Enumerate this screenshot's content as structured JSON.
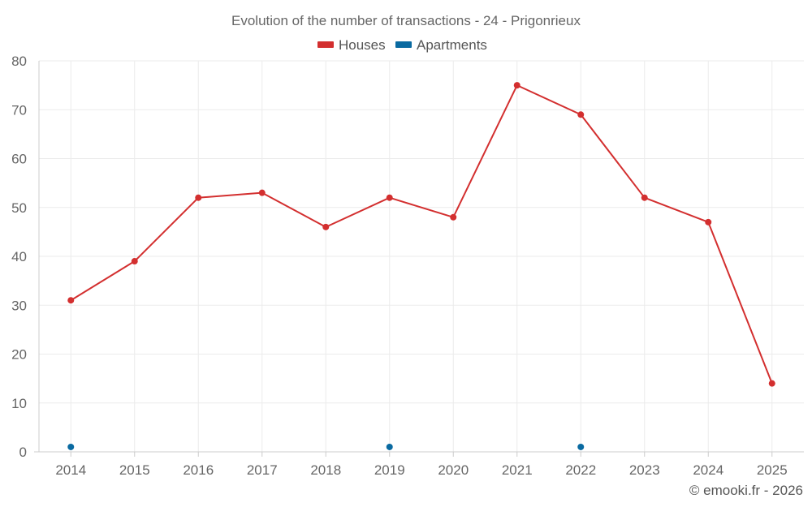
{
  "chart_data": {
    "type": "line",
    "title": "Evolution of the number of transactions - 24 - Prigonrieux",
    "categories": [
      "2014",
      "2015",
      "2016",
      "2017",
      "2018",
      "2019",
      "2020",
      "2021",
      "2022",
      "2023",
      "2024",
      "2025"
    ],
    "ylim": [
      0,
      80
    ],
    "yticks": [
      0,
      10,
      20,
      30,
      40,
      50,
      60,
      70,
      80
    ],
    "grid": true,
    "legend_position": "top-center",
    "series": [
      {
        "name": "Houses",
        "color": "#d32f2f",
        "line": true,
        "values": [
          31,
          39,
          52,
          53,
          46,
          52,
          48,
          75,
          69,
          52,
          47,
          14
        ]
      },
      {
        "name": "Apartments",
        "color": "#0a6aa1",
        "line": false,
        "values": [
          1,
          null,
          null,
          null,
          null,
          1,
          null,
          null,
          1,
          null,
          null,
          null
        ]
      }
    ]
  },
  "footer": "© emooki.fr - 2026"
}
